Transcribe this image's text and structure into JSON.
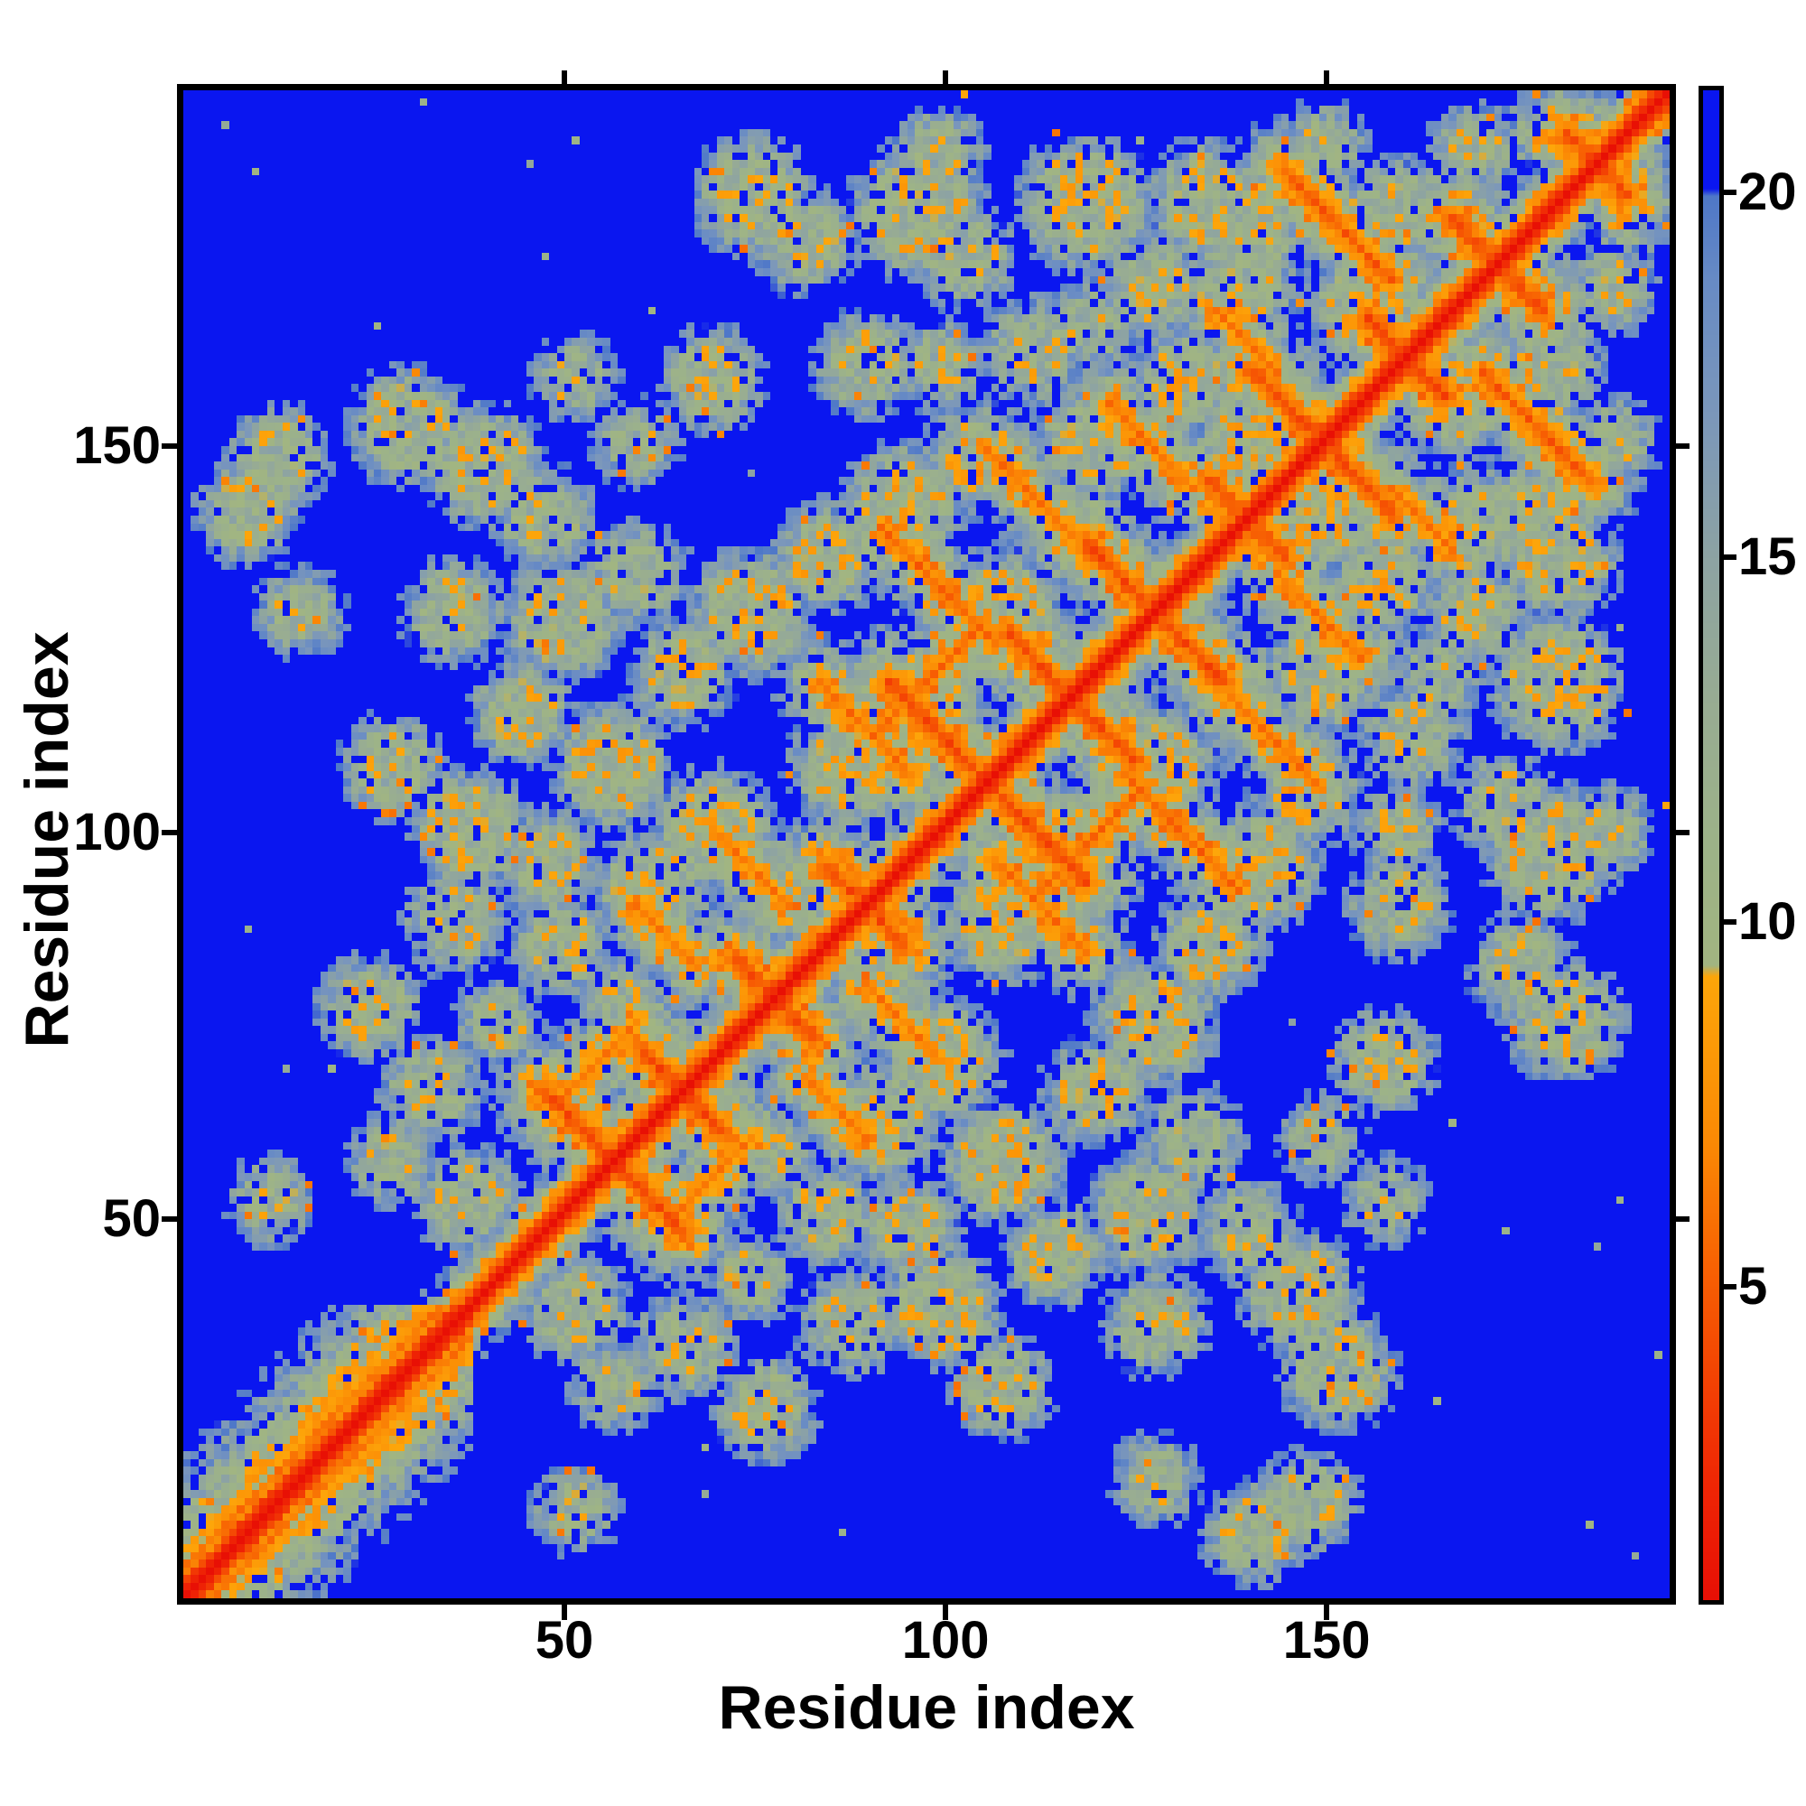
{
  "figure": {
    "background_color": "#ffffff",
    "type": "protein residue-residue distance map"
  },
  "chart_data": {
    "type": "heatmap",
    "title": "",
    "xlabel": "Residue index",
    "ylabel": "Residue index",
    "n_residues": 195,
    "x_ticks": [
      50,
      100,
      150
    ],
    "y_ticks": [
      50,
      100,
      150
    ],
    "axis_range": [
      1,
      195
    ],
    "grid": false,
    "colorbar": {
      "orientation": "vertical",
      "position": "right",
      "ticks": [
        5,
        10,
        15,
        20
      ],
      "range": [
        0.7,
        21.4
      ],
      "hard_step_at": 20,
      "above_step_color": "#0a16f0"
    },
    "colormap": [
      [
        0.7,
        "#e81005"
      ],
      [
        2.2,
        "#ef2505"
      ],
      [
        5.0,
        "#f75c03"
      ],
      [
        7.0,
        "#fb8a05"
      ],
      [
        9.25,
        "#fda60a"
      ],
      [
        9.4,
        "#a2b581"
      ],
      [
        11.0,
        "#9db388"
      ],
      [
        13.0,
        "#98ac93"
      ],
      [
        15.0,
        "#8da3a3"
      ],
      [
        17.0,
        "#7b97bb"
      ],
      [
        18.8,
        "#688bc5"
      ],
      [
        19.95,
        "#4f78c8"
      ],
      [
        20.05,
        "#0a16f0"
      ],
      [
        21.4,
        "#0a16f0"
      ]
    ],
    "features": {
      "description": "Symmetric distance matrix: red main diagonal, broad striped near-diagonal band for residues 1-38, antiparallel hairpin X-crossings along the diagonal, orange off-diagonal contact streaks, and mottled sage/gray contact clusters on a blue (>20) background.",
      "base_slope": 2.55,
      "helix_region": {
        "start": 1,
        "end": 38
      },
      "hairpins": [
        [
          57,
          9
        ],
        [
          66,
          5
        ],
        [
          78,
          5
        ],
        [
          90,
          5
        ],
        [
          106,
          13
        ],
        [
          117,
          8
        ],
        [
          128,
          9
        ],
        [
          140,
          5
        ],
        [
          150,
          9
        ],
        [
          161,
          5
        ],
        [
          173,
          6
        ],
        [
          186,
          4
        ]
      ],
      "anti_segments": [
        [
          152,
          178,
          7,
          5.0
        ],
        [
          100,
          131,
          7,
          5.5
        ],
        [
          112,
          143,
          6,
          6.0
        ],
        [
          90,
          113,
          6,
          6.0
        ],
        [
          127,
          150,
          5,
          6.0
        ],
        [
          75,
          95,
          5,
          6.5
        ],
        [
          64,
          86,
          4,
          6.5
        ],
        [
          140,
          163,
          4,
          6.5
        ]
      ],
      "para_segments": [
        [
          98,
          119,
          7,
          5.5
        ],
        [
          55,
          70,
          5,
          6.5
        ]
      ],
      "blobs": [
        [
          9,
          141,
          4,
          12
        ],
        [
          16,
          128,
          3,
          12
        ],
        [
          13,
          148,
          4,
          12
        ],
        [
          30,
          152,
          5,
          12
        ],
        [
          40,
          147,
          5,
          11.5
        ],
        [
          48,
          140,
          4,
          12
        ],
        [
          36,
          128,
          4,
          12
        ],
        [
          50,
          127,
          5,
          11.5
        ],
        [
          60,
          133,
          4,
          12
        ],
        [
          28,
          108,
          4,
          12
        ],
        [
          38,
          100,
          5,
          11.5
        ],
        [
          48,
          96,
          4,
          12
        ],
        [
          36,
          88,
          4,
          12
        ],
        [
          25,
          77,
          4,
          12
        ],
        [
          33,
          66,
          4,
          12
        ],
        [
          28,
          57,
          3,
          12
        ],
        [
          12,
          52,
          3,
          12.5
        ],
        [
          38,
          52,
          4,
          11.5
        ],
        [
          45,
          115,
          4,
          11.5
        ],
        [
          57,
          108,
          5,
          11
        ],
        [
          66,
          120,
          4,
          11.5
        ],
        [
          75,
          128,
          5,
          11
        ],
        [
          85,
          135,
          4,
          11
        ],
        [
          95,
          142,
          5,
          11
        ],
        [
          105,
          148,
          4,
          11
        ],
        [
          70,
          100,
          5,
          11
        ],
        [
          80,
          92,
          4,
          11
        ],
        [
          62,
          92,
          5,
          11.5
        ],
        [
          88,
          108,
          5,
          11
        ],
        [
          98,
          118,
          4,
          11
        ],
        [
          108,
          128,
          5,
          11
        ],
        [
          118,
          138,
          4,
          11
        ],
        [
          120,
          150,
          5,
          11.5
        ],
        [
          132,
          158,
          4,
          11
        ],
        [
          140,
          150,
          4,
          11
        ],
        [
          128,
          170,
          4,
          12
        ],
        [
          140,
          178,
          5,
          11.5
        ],
        [
          150,
          188,
          3,
          12
        ],
        [
          75,
          182,
          5,
          12
        ],
        [
          82,
          176,
          4,
          12
        ],
        [
          97,
          180,
          6,
          11.5
        ],
        [
          103,
          174,
          4,
          12
        ],
        [
          119,
          181,
          6,
          11.5
        ],
        [
          135,
          181,
          5,
          11.5
        ],
        [
          140,
          170,
          4,
          12
        ],
        [
          160,
          180,
          4,
          11.5
        ],
        [
          170,
          188,
          3,
          12
        ],
        [
          155,
          168,
          4,
          11.5
        ],
        [
          60,
          150,
          3,
          12.5
        ],
        [
          70,
          158,
          4,
          12
        ],
        [
          52,
          158,
          3,
          12.5
        ],
        [
          90,
          160,
          4,
          12
        ],
        [
          100,
          160,
          3,
          12
        ],
        [
          112,
          162,
          4,
          12
        ],
        [
          120,
          165,
          3,
          12
        ],
        [
          42,
          75,
          3,
          12
        ],
        [
          50,
          85,
          4,
          12
        ],
        [
          58,
          78,
          3,
          12
        ],
        [
          100,
          188,
          3,
          12.5
        ],
        [
          180,
          190,
          3,
          11.5
        ],
        [
          65,
          70,
          3,
          10.5
        ]
      ]
    }
  }
}
